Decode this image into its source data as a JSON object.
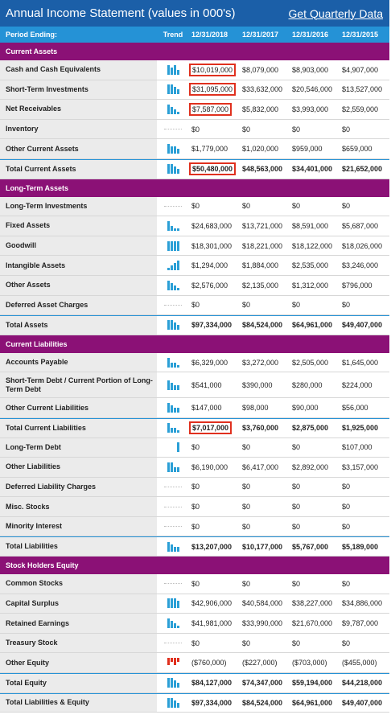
{
  "header": {
    "title": "Annual Income Statement (values in 000's)",
    "quarterly_link": "Get Quarterly Data"
  },
  "columns": {
    "label": "Period Ending:",
    "trend": "Trend",
    "periods": [
      "12/31/2018",
      "12/31/2017",
      "12/31/2016",
      "12/31/2015"
    ]
  },
  "colors": {
    "title_bar": "#1b5fa8",
    "header_row": "#2592d6",
    "section": "#8b1176",
    "highlight": "#e0301e",
    "trend_positive": "#2a9fd6",
    "trend_negative": "#e0301e"
  },
  "sections": [
    {
      "title": "Current Assets",
      "rows": [
        {
          "label": "Cash and Cash Equivalents",
          "values": [
            "$10,019,000",
            "$8,079,000",
            "$8,903,000",
            "$4,907,000"
          ],
          "trend": [
            4,
            3,
            4,
            2
          ],
          "highlight": true
        },
        {
          "label": "Short-Term Investments",
          "values": [
            "$31,095,000",
            "$33,632,000",
            "$20,546,000",
            "$13,527,000"
          ],
          "trend": [
            4,
            4,
            3,
            2
          ],
          "highlight": true
        },
        {
          "label": "Net Receivables",
          "values": [
            "$7,587,000",
            "$5,832,000",
            "$3,993,000",
            "$2,559,000"
          ],
          "trend": [
            4,
            3,
            2,
            1
          ],
          "highlight": true
        },
        {
          "label": "Inventory",
          "values": [
            "$0",
            "$0",
            "$0",
            "$0"
          ],
          "trend": []
        },
        {
          "label": "Other Current Assets",
          "values": [
            "$1,779,000",
            "$1,020,000",
            "$959,000",
            "$659,000"
          ],
          "trend": [
            4,
            3,
            3,
            2
          ]
        },
        {
          "label": "Total Current Assets",
          "values": [
            "$50,480,000",
            "$48,563,000",
            "$34,401,000",
            "$21,652,000"
          ],
          "trend": [
            4,
            4,
            3,
            2
          ],
          "total": true,
          "highlight": true
        }
      ]
    },
    {
      "title": "Long-Term Assets",
      "rows": [
        {
          "label": "Long-Term Investments",
          "values": [
            "$0",
            "$0",
            "$0",
            "$0"
          ],
          "trend": []
        },
        {
          "label": "Fixed Assets",
          "values": [
            "$24,683,000",
            "$13,721,000",
            "$8,591,000",
            "$5,687,000"
          ],
          "trend": [
            4,
            2,
            1,
            1
          ]
        },
        {
          "label": "Goodwill",
          "values": [
            "$18,301,000",
            "$18,221,000",
            "$18,122,000",
            "$18,026,000"
          ],
          "trend": [
            4,
            4,
            4,
            4
          ]
        },
        {
          "label": "Intangible Assets",
          "values": [
            "$1,294,000",
            "$1,884,000",
            "$2,535,000",
            "$3,246,000"
          ],
          "trend": [
            1,
            2,
            3,
            4
          ]
        },
        {
          "label": "Other Assets",
          "values": [
            "$2,576,000",
            "$2,135,000",
            "$1,312,000",
            "$796,000"
          ],
          "trend": [
            4,
            3,
            2,
            1
          ]
        },
        {
          "label": "Deferred Asset Charges",
          "values": [
            "$0",
            "$0",
            "$0",
            "$0"
          ],
          "trend": []
        },
        {
          "label": "Total Assets",
          "values": [
            "$97,334,000",
            "$84,524,000",
            "$64,961,000",
            "$49,407,000"
          ],
          "trend": [
            4,
            4,
            3,
            2
          ],
          "total": true
        }
      ]
    },
    {
      "title": "Current Liabilities",
      "rows": [
        {
          "label": "Accounts Payable",
          "values": [
            "$6,329,000",
            "$3,272,000",
            "$2,505,000",
            "$1,645,000"
          ],
          "trend": [
            4,
            2,
            2,
            1
          ]
        },
        {
          "label": "Short-Term Debt / Current Portion of Long-Term Debt",
          "values": [
            "$541,000",
            "$390,000",
            "$280,000",
            "$224,000"
          ],
          "trend": [
            4,
            3,
            2,
            2
          ],
          "tall": true
        },
        {
          "label": "Other Current Liabilities",
          "values": [
            "$147,000",
            "$98,000",
            "$90,000",
            "$56,000"
          ],
          "trend": [
            4,
            3,
            2,
            2
          ]
        },
        {
          "label": "Total Current Liabilities",
          "values": [
            "$7,017,000",
            "$3,760,000",
            "$2,875,000",
            "$1,925,000"
          ],
          "trend": [
            4,
            2,
            2,
            1
          ],
          "total": true,
          "highlight": true
        }
      ]
    },
    {
      "title": "",
      "rows": [
        {
          "label": "Long-Term Debt",
          "values": [
            "$0",
            "$0",
            "$0",
            "$107,000"
          ],
          "trend": [
            0,
            0,
            0,
            4
          ]
        },
        {
          "label": "Other Liabilities",
          "values": [
            "$6,190,000",
            "$6,417,000",
            "$2,892,000",
            "$3,157,000"
          ],
          "trend": [
            4,
            4,
            2,
            2
          ]
        },
        {
          "label": "Deferred Liability Charges",
          "values": [
            "$0",
            "$0",
            "$0",
            "$0"
          ],
          "trend": []
        },
        {
          "label": "Misc. Stocks",
          "values": [
            "$0",
            "$0",
            "$0",
            "$0"
          ],
          "trend": []
        },
        {
          "label": "Minority Interest",
          "values": [
            "$0",
            "$0",
            "$0",
            "$0"
          ],
          "trend": []
        },
        {
          "label": "Total Liabilities",
          "values": [
            "$13,207,000",
            "$10,177,000",
            "$5,767,000",
            "$5,189,000"
          ],
          "trend": [
            4,
            3,
            2,
            2
          ],
          "total": true
        }
      ]
    },
    {
      "title": "Stock Holders Equity",
      "rows": [
        {
          "label": "Common Stocks",
          "values": [
            "$0",
            "$0",
            "$0",
            "$0"
          ],
          "trend": []
        },
        {
          "label": "Capital Surplus",
          "values": [
            "$42,906,000",
            "$40,584,000",
            "$38,227,000",
            "$34,886,000"
          ],
          "trend": [
            4,
            4,
            4,
            3
          ]
        },
        {
          "label": "Retained Earnings",
          "values": [
            "$41,981,000",
            "$33,990,000",
            "$21,670,000",
            "$9,787,000"
          ],
          "trend": [
            4,
            3,
            2,
            1
          ]
        },
        {
          "label": "Treasury Stock",
          "values": [
            "$0",
            "$0",
            "$0",
            "$0"
          ],
          "trend": []
        },
        {
          "label": "Other Equity",
          "values": [
            "($760,000)",
            "($227,000)",
            "($703,000)",
            "($455,000)"
          ],
          "trend": [
            -4,
            -1,
            -4,
            -2
          ]
        },
        {
          "label": "Total Equity",
          "values": [
            "$84,127,000",
            "$74,347,000",
            "$59,194,000",
            "$44,218,000"
          ],
          "trend": [
            4,
            4,
            3,
            2
          ],
          "total": true
        },
        {
          "label": "Total Liabilities & Equity",
          "values": [
            "$97,334,000",
            "$84,524,000",
            "$64,961,000",
            "$49,407,000"
          ],
          "trend": [
            4,
            4,
            3,
            2
          ],
          "total": true
        }
      ]
    }
  ]
}
